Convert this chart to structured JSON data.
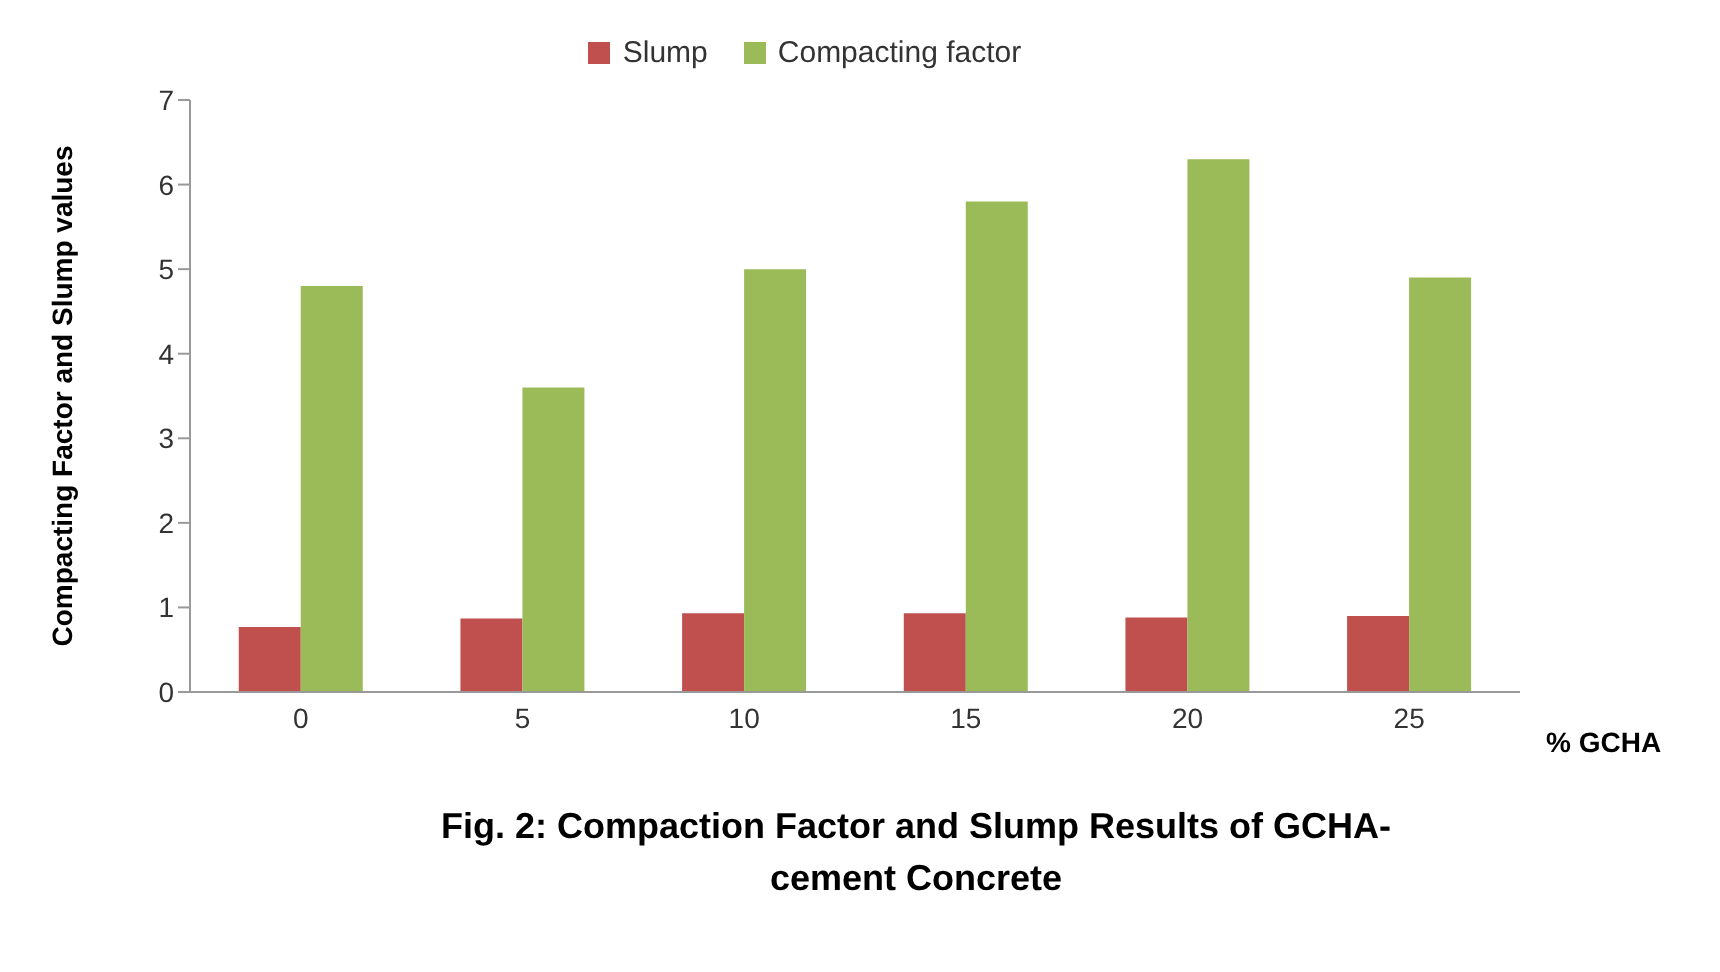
{
  "chart_data": {
    "type": "bar",
    "title": "Fig. 2: Compaction Factor and Slump Results of GCHA-cement Concrete",
    "xlabel": "% GCHA",
    "ylabel": "Compacting Factor and Slump values",
    "categories": [
      "0",
      "5",
      "10",
      "15",
      "20",
      "25"
    ],
    "series": [
      {
        "name": "Slump",
        "color": "#c0504d",
        "values": [
          0.77,
          0.87,
          0.93,
          0.93,
          0.88,
          0.9
        ]
      },
      {
        "name": "Compacting factor",
        "color": "#9bbb59",
        "values": [
          4.8,
          3.6,
          5.0,
          5.8,
          6.3,
          4.9
        ]
      }
    ],
    "ylim": [
      0,
      7
    ],
    "yticks": [
      0,
      1,
      2,
      3,
      4,
      5,
      6,
      7
    ],
    "grid": false,
    "legend": "top"
  }
}
